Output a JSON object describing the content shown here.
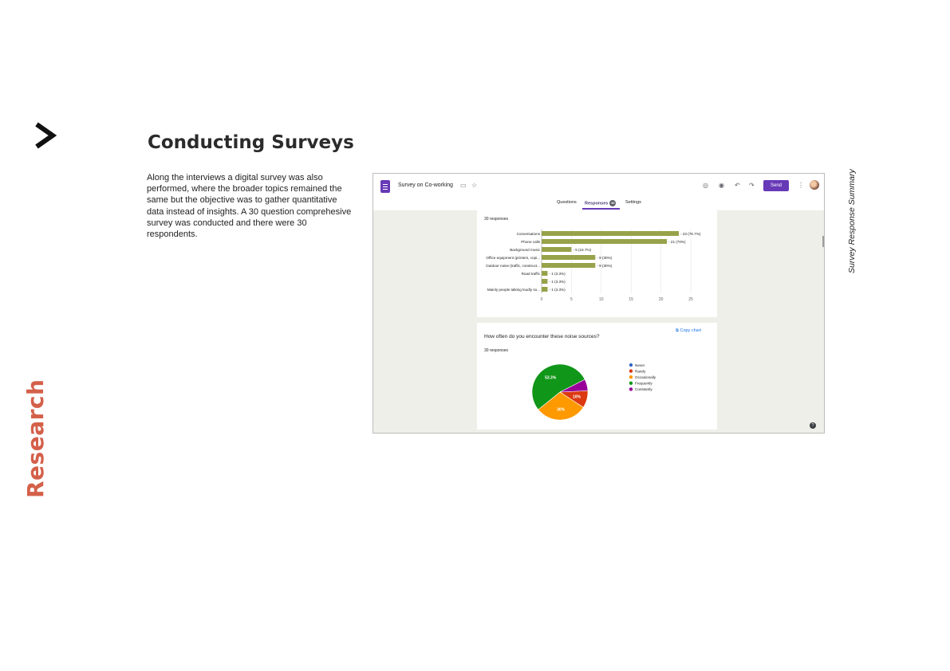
{
  "page": {
    "title": "Conducting Surveys",
    "side_label": "Research",
    "side_label_color": "#d4604a",
    "body": "Along the interviews a digital survey was also performed, where the broader topics remained the same but the objective was to gather quantitative data instead of insights. A 30 question comprehesive survey was conducted and there were 30 respondents.",
    "caption": "Survey Response Summary"
  },
  "forms": {
    "doc_title": "Survey on Co-working",
    "send_label": "Send",
    "tabs": [
      "Questions",
      "Responses",
      "Settings"
    ],
    "responses_badge": "30",
    "help_icon": "help-icon",
    "accent": "#673ab7"
  },
  "chart_data": [
    {
      "type": "bar",
      "orientation": "horizontal",
      "subtitle": "30 responses",
      "categories": [
        "Conversations",
        "Phone calls",
        "Background music",
        "Office equipment (printers, copi...",
        "Outdoor noise (traffic, construct...",
        "Road traffic",
        "",
        "Mainly people talking loudly so..."
      ],
      "values": [
        23,
        21,
        5,
        9,
        9,
        1,
        1,
        1
      ],
      "data_labels": [
        "23 (76.7%)",
        "21 (70%)",
        "5 (16.7%)",
        "9 (30%)",
        "9 (30%)",
        "1 (3.3%)",
        "1 (3.3%)",
        "1 (3.3%)"
      ],
      "xticks": [
        "0",
        "5",
        "10",
        "15",
        "20",
        "25"
      ],
      "xlim": [
        0,
        25
      ],
      "color": "#97a24a",
      "grid": true
    },
    {
      "type": "pie",
      "title": "How often do you encounter these noise sources?",
      "subtitle": "30 responses",
      "copy_label": "Copy chart",
      "labels": [
        "Never",
        "Rarely",
        "Occasionally",
        "Frequently",
        "Constantly"
      ],
      "values": [
        0,
        10,
        30,
        53.3,
        6.7
      ],
      "data_labels": [
        "",
        "10%",
        "30%",
        "53.3%",
        ""
      ],
      "colors": [
        "#3366cc",
        "#dc3912",
        "#ff9900",
        "#109618",
        "#990099"
      ],
      "legend": "right"
    }
  ]
}
